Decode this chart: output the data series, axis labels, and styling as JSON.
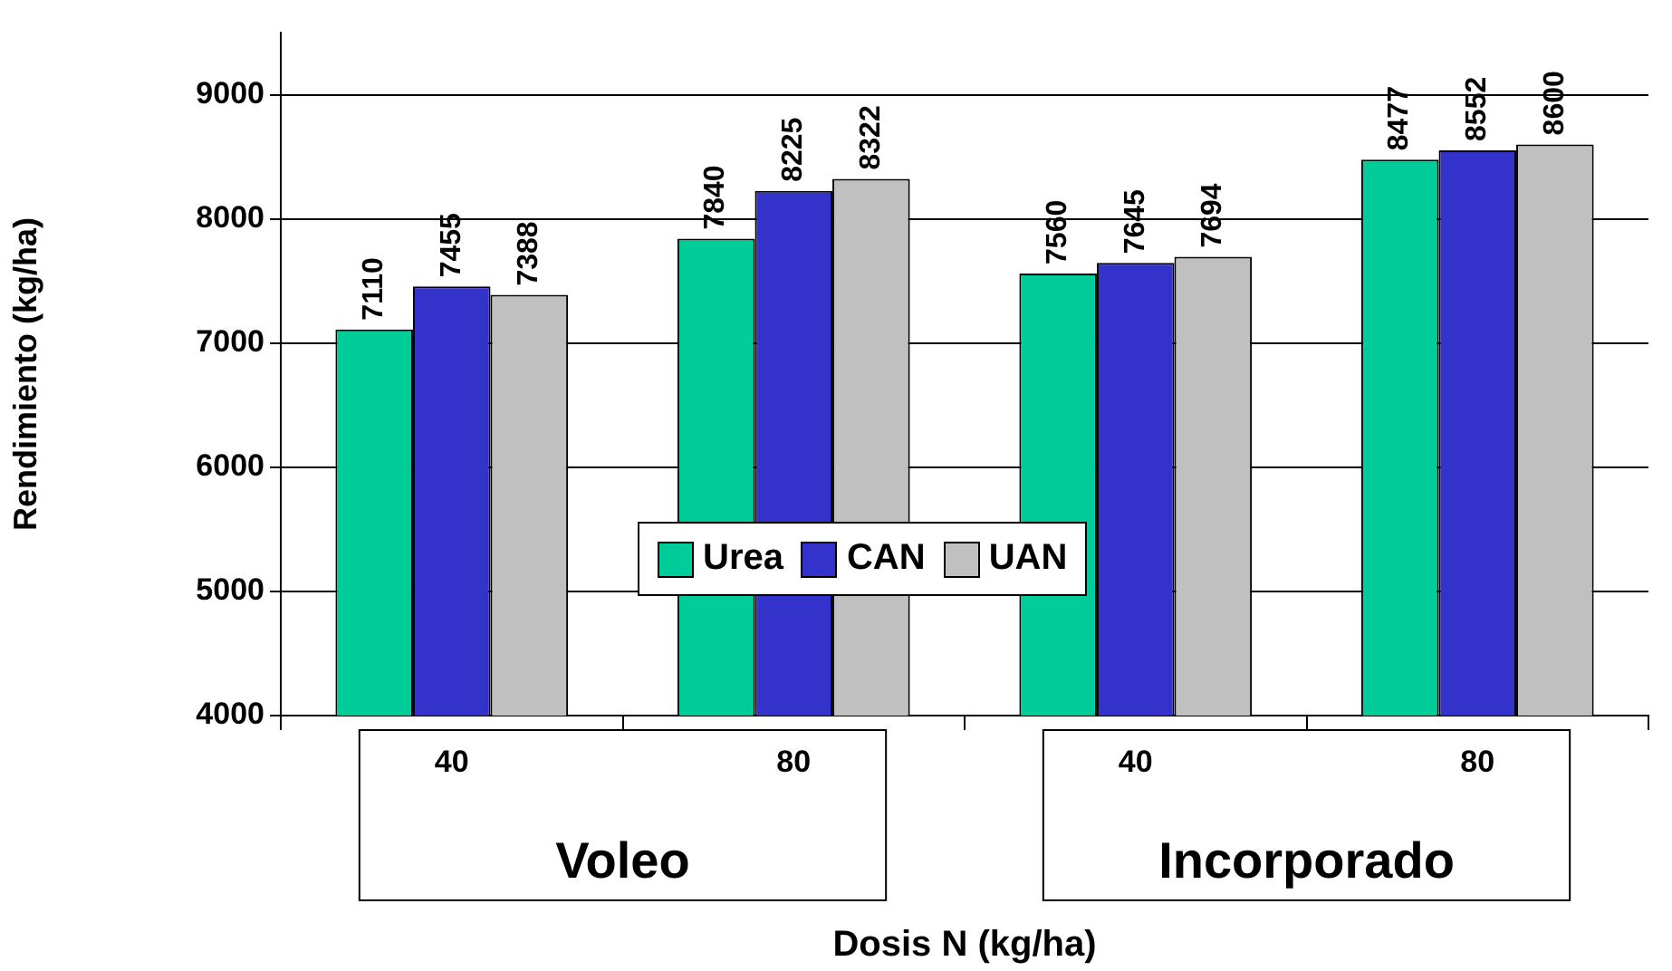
{
  "chart_data": {
    "type": "bar",
    "ylabel": "Rendimiento (kg/ha)",
    "xlabel": "Dosis N (kg/ha)",
    "categories": [
      "40",
      "80",
      "40",
      "80"
    ],
    "annotations": [
      "Voleo",
      "Incorporado"
    ],
    "series": [
      {
        "name": "Urea",
        "color": "#00cc99",
        "values": [
          7110,
          7840,
          7560,
          8477
        ]
      },
      {
        "name": "CAN",
        "color": "#3333cc",
        "values": [
          7455,
          8225,
          7645,
          8552
        ]
      },
      {
        "name": "UAN",
        "color": "#c0c0c0",
        "values": [
          7388,
          8322,
          7694,
          8600
        ]
      }
    ],
    "ylim": [
      4000,
      9500
    ],
    "yticks": [
      4000,
      5000,
      6000,
      7000,
      8000,
      9000
    ],
    "grid": "y",
    "legend": "center",
    "data_labels": true
  }
}
